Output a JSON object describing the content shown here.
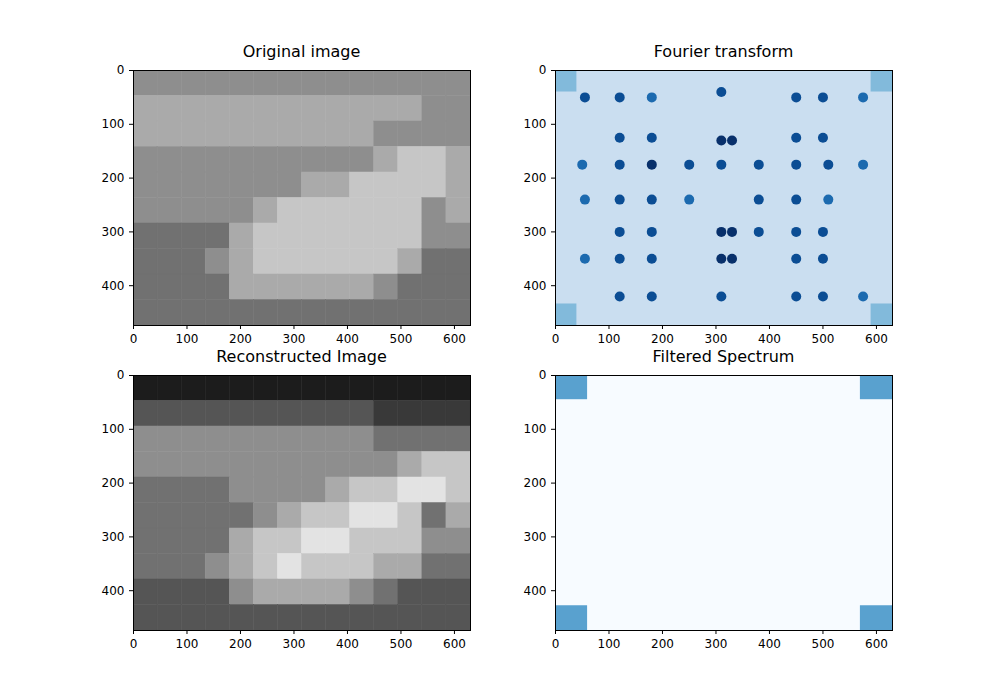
{
  "chart_data": [
    {
      "type": "image",
      "title": "Original image",
      "color": "gray",
      "zlim": [
        0,
        9
      ],
      "xlim": [
        0,
        630
      ],
      "ylim": [
        474,
        0
      ],
      "xticks": [
        0,
        100,
        200,
        300,
        400,
        500,
        600
      ],
      "yticks": [
        0,
        100,
        200,
        300,
        400
      ],
      "cells": [
        [
          5,
          5,
          5,
          5,
          5,
          5,
          5,
          5,
          5,
          5,
          5,
          5,
          5,
          5
        ],
        [
          6,
          6,
          6,
          6,
          6,
          6,
          6,
          6,
          6,
          6,
          6,
          6,
          5,
          5
        ],
        [
          6,
          6,
          6,
          6,
          6,
          6,
          6,
          6,
          6,
          6,
          5,
          5,
          5,
          5
        ],
        [
          5,
          5,
          5,
          5,
          5,
          5,
          5,
          5,
          5,
          5,
          6,
          7,
          7,
          6
        ],
        [
          5,
          5,
          5,
          5,
          5,
          5,
          5,
          6,
          6,
          7,
          7,
          7,
          7,
          6
        ],
        [
          5,
          5,
          5,
          5,
          5,
          6,
          7,
          7,
          7,
          7,
          7,
          7,
          5,
          6
        ],
        [
          4,
          4,
          4,
          4,
          6,
          7,
          7,
          7,
          7,
          7,
          7,
          7,
          5,
          5
        ],
        [
          4,
          4,
          4,
          5,
          6,
          7,
          7,
          7,
          7,
          7,
          7,
          6,
          4,
          4
        ],
        [
          4,
          4,
          4,
          4,
          6,
          6,
          6,
          6,
          6,
          6,
          5,
          4,
          4,
          4
        ],
        [
          4,
          4,
          4,
          4,
          4,
          4,
          4,
          4,
          4,
          4,
          4,
          4,
          4,
          4
        ]
      ]
    },
    {
      "type": "image",
      "title": "Fourier transform",
      "color": "Blues",
      "zlim": [
        0,
        9
      ],
      "xlim": [
        0,
        630
      ],
      "ylim": [
        474,
        0
      ],
      "xticks": [
        0,
        100,
        200,
        300,
        400,
        500,
        600
      ],
      "yticks": [
        0,
        100,
        200,
        300,
        400
      ],
      "background": 2,
      "regions": [
        {
          "x": [
            0,
            40
          ],
          "y": [
            0,
            40
          ],
          "value": 4
        },
        {
          "x": [
            590,
            630
          ],
          "y": [
            0,
            40
          ],
          "value": 4
        },
        {
          "x": [
            0,
            40
          ],
          "y": [
            434,
            474
          ],
          "value": 4
        },
        {
          "x": [
            590,
            630
          ],
          "y": [
            434,
            474
          ],
          "value": 4
        }
      ],
      "peaks": {
        "x": [
          55,
          120,
          180,
          310,
          450,
          500,
          575,
          120,
          180,
          310,
          330,
          450,
          500,
          50,
          120,
          180,
          250,
          310,
          380,
          450,
          510,
          575,
          55,
          120,
          180,
          250,
          380,
          450,
          510,
          120,
          180,
          310,
          330,
          380,
          450,
          500,
          55,
          120,
          180,
          310,
          330,
          450,
          500,
          120,
          180,
          310,
          450,
          500,
          575
        ],
        "y": [
          50,
          50,
          50,
          40,
          50,
          50,
          50,
          125,
          125,
          130,
          130,
          125,
          125,
          175,
          175,
          175,
          175,
          175,
          175,
          175,
          175,
          175,
          240,
          240,
          240,
          240,
          240,
          240,
          240,
          300,
          300,
          300,
          300,
          300,
          300,
          300,
          350,
          350,
          350,
          350,
          350,
          350,
          350,
          420,
          420,
          420,
          420,
          420,
          420
        ],
        "values": [
          8,
          8,
          7,
          8,
          8,
          8,
          7,
          8,
          8,
          9,
          9,
          8,
          8,
          7,
          8,
          9,
          8,
          8,
          8,
          8,
          8,
          7,
          7,
          8,
          8,
          7,
          8,
          8,
          7,
          8,
          8,
          9,
          9,
          8,
          8,
          8,
          7,
          8,
          8,
          9,
          9,
          8,
          8,
          8,
          8,
          8,
          8,
          8,
          7
        ]
      }
    },
    {
      "type": "image",
      "title": "Reconstructed Image",
      "color": "gray",
      "zlim": [
        0,
        9
      ],
      "xlim": [
        0,
        630
      ],
      "ylim": [
        474,
        0
      ],
      "xticks": [
        0,
        100,
        200,
        300,
        400,
        500,
        600
      ],
      "yticks": [
        0,
        100,
        200,
        300,
        400
      ],
      "cells": [
        [
          1,
          1,
          1,
          1,
          1,
          1,
          1,
          1,
          1,
          1,
          1,
          1,
          1,
          1
        ],
        [
          3,
          3,
          3,
          3,
          3,
          3,
          3,
          3,
          3,
          3,
          2,
          2,
          2,
          2
        ],
        [
          5,
          5,
          5,
          5,
          5,
          5,
          5,
          5,
          5,
          5,
          4,
          4,
          4,
          4
        ],
        [
          5,
          5,
          5,
          5,
          5,
          5,
          5,
          5,
          5,
          5,
          5,
          6,
          7,
          7
        ],
        [
          4,
          4,
          4,
          4,
          5,
          5,
          5,
          5,
          6,
          7,
          7,
          8,
          8,
          7
        ],
        [
          4,
          4,
          4,
          4,
          4,
          5,
          6,
          7,
          7,
          8,
          8,
          7,
          4,
          6
        ],
        [
          4,
          4,
          4,
          4,
          6,
          7,
          7,
          8,
          8,
          7,
          7,
          7,
          5,
          5
        ],
        [
          4,
          4,
          4,
          5,
          6,
          7,
          8,
          7,
          7,
          7,
          6,
          6,
          4,
          4
        ],
        [
          3,
          3,
          3,
          3,
          5,
          6,
          6,
          6,
          6,
          5,
          4,
          3,
          3,
          3
        ],
        [
          3,
          3,
          3,
          3,
          3,
          3,
          3,
          3,
          3,
          3,
          3,
          3,
          3,
          3
        ]
      ]
    },
    {
      "type": "image",
      "title": "Filtered Spectrum",
      "color": "Blues",
      "zlim": [
        0,
        9
      ],
      "xlim": [
        0,
        630
      ],
      "ylim": [
        474,
        0
      ],
      "xticks": [
        0,
        100,
        200,
        300,
        400,
        500,
        600
      ],
      "yticks": [
        0,
        100,
        200,
        300,
        400
      ],
      "background": 0,
      "regions": [
        {
          "x": [
            0,
            60
          ],
          "y": [
            0,
            45
          ],
          "value": 5
        },
        {
          "x": [
            570,
            630
          ],
          "y": [
            0,
            45
          ],
          "value": 5
        },
        {
          "x": [
            0,
            60
          ],
          "y": [
            428,
            474
          ],
          "value": 5
        },
        {
          "x": [
            570,
            630
          ],
          "y": [
            428,
            474
          ],
          "value": 5
        }
      ]
    }
  ]
}
